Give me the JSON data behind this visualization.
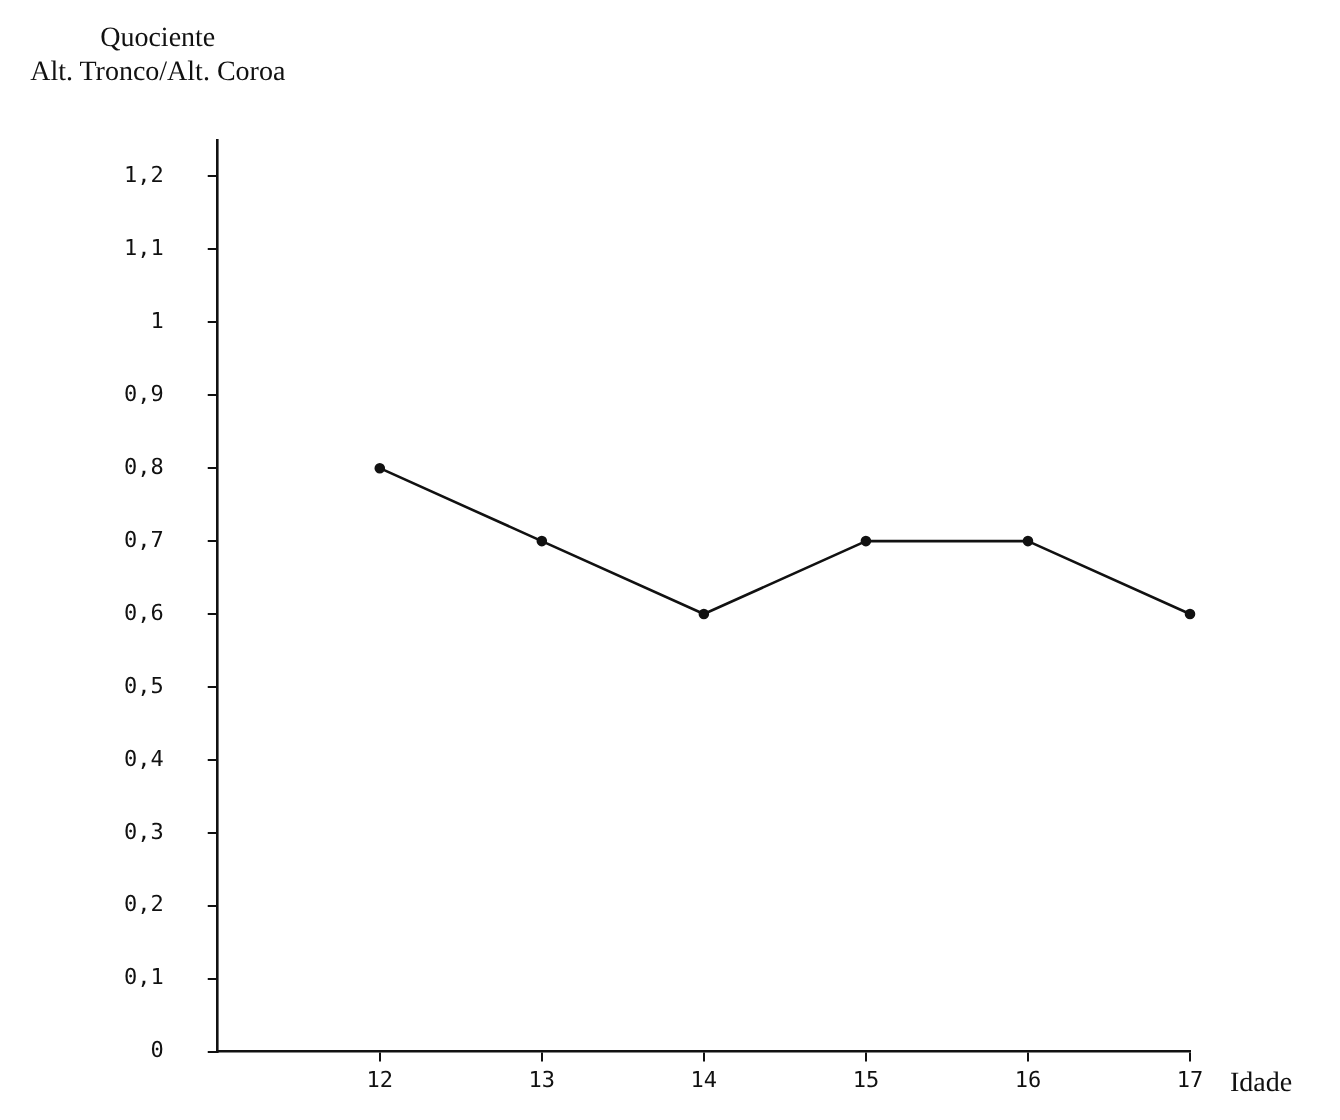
{
  "chart_data": {
    "type": "line",
    "xlabel": "Idade",
    "ylabel": "Quociente\nAlt. Tronco/Alt. Coroa",
    "x": [
      12,
      13,
      14,
      15,
      16,
      17
    ],
    "series": [
      {
        "color": "#111111",
        "values": [
          0.8,
          0.7,
          0.6,
          0.7,
          0.7,
          0.6
        ]
      }
    ],
    "xlim": [
      11,
      17
    ],
    "xticks": [
      12,
      13,
      14,
      15,
      16,
      17
    ],
    "ylim": [
      0,
      1.25
    ],
    "yticks": [
      0,
      {
        "value": 0.1,
        "label": "0,1"
      },
      {
        "value": 0.2,
        "label": "0,2"
      },
      {
        "value": 0.3,
        "label": "0,3"
      },
      {
        "value": 0.4,
        "label": "0,4"
      },
      {
        "value": 0.5,
        "label": "0,5"
      },
      {
        "value": 0.6,
        "label": "0,6"
      },
      {
        "value": 0.7,
        "label": "0,7"
      },
      {
        "value": 0.8,
        "label": "0,8"
      },
      {
        "value": 0.9,
        "label": "0,9"
      },
      1,
      {
        "value": 1.1,
        "label": "1,1"
      },
      {
        "value": 1.2,
        "label": "1,2"
      }
    ],
    "grid": false,
    "legend": false,
    "marker": "circle",
    "line_style": "solid"
  }
}
